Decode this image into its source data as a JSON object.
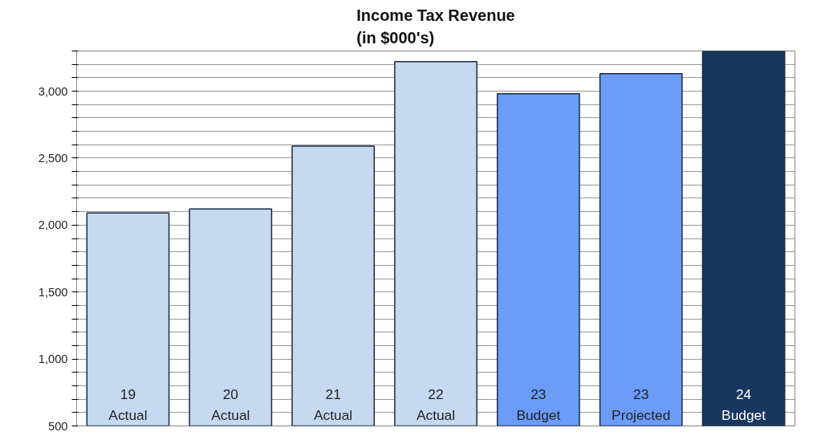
{
  "chart_data": {
    "type": "bar",
    "title": "Income Tax Revenue\n(in $000's)",
    "categories": [
      "19\nActual",
      "20\nActual",
      "21\nActual",
      "22\nActual",
      "23\nBudget",
      "23\nProjected",
      "24\nBudget"
    ],
    "values": [
      2090,
      2120,
      2590,
      3220,
      2980,
      3130,
      3300
    ],
    "colors": [
      "#c6d9f1",
      "#c6d9f1",
      "#c6d9f1",
      "#c6d9f1",
      "#6b9cf7",
      "#6b9cf7",
      "#17375e"
    ],
    "ylim": [
      500,
      3300
    ],
    "yticks": [
      500,
      {
        "value": 600,
        "label": null
      },
      {
        "value": 700,
        "label": null
      },
      {
        "value": 800,
        "label": null
      },
      {
        "value": 900,
        "label": null
      },
      {
        "value": 1000,
        "label": "1,000"
      },
      {
        "value": 1100,
        "label": null
      },
      {
        "value": 1200,
        "label": null
      },
      {
        "value": 1300,
        "label": null
      },
      {
        "value": 1400,
        "label": null
      },
      {
        "value": 1500,
        "label": "1,500"
      },
      {
        "value": 1600,
        "label": null
      },
      {
        "value": 1700,
        "label": null
      },
      {
        "value": 1800,
        "label": null
      },
      {
        "value": 1900,
        "label": null
      },
      {
        "value": 2000,
        "label": "2,000"
      },
      {
        "value": 2100,
        "label": null
      },
      {
        "value": 2200,
        "label": null
      },
      {
        "value": 2300,
        "label": null
      },
      {
        "value": 2400,
        "label": null
      },
      {
        "value": 2500,
        "label": "2,500"
      },
      {
        "value": 2600,
        "label": null
      },
      {
        "value": 2700,
        "label": null
      },
      {
        "value": 2800,
        "label": null
      },
      {
        "value": 2900,
        "label": null
      },
      {
        "value": 3000,
        "label": "3,000"
      },
      {
        "value": 3100,
        "label": null
      },
      {
        "value": 3200,
        "label": null
      },
      {
        "value": 3300,
        "label": null
      }
    ],
    "grid": "y"
  }
}
